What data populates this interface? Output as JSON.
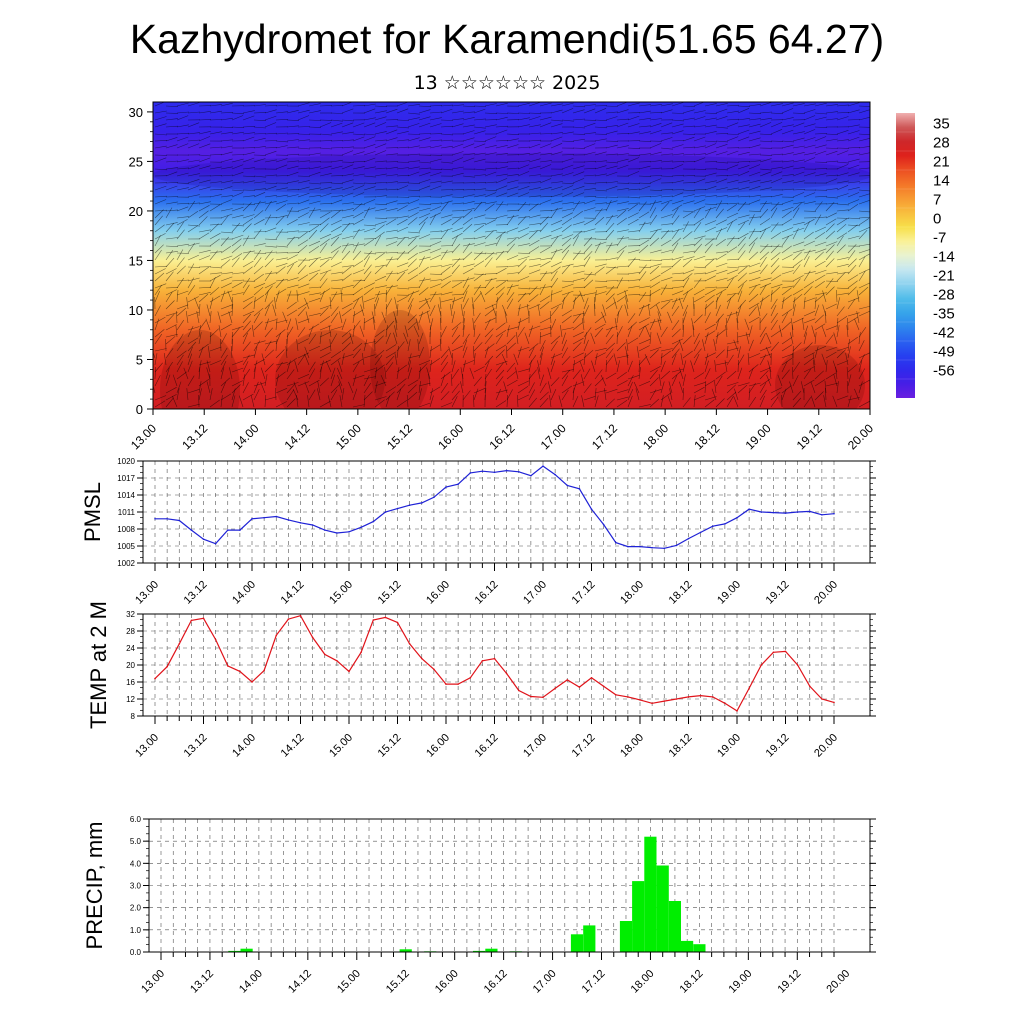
{
  "title": "Kazhydromet for Karamendi(51.65 64.27)",
  "subtitle": "13 ☆☆☆☆☆☆ 2025",
  "time_labels": [
    "13.00",
    "13.12",
    "14.00",
    "14.12",
    "15.00",
    "15.12",
    "16.00",
    "16.12",
    "17.00",
    "17.12",
    "18.00",
    "18.12",
    "19.00",
    "19.12",
    "20.00"
  ],
  "chart_data": [
    {
      "type": "heatmap",
      "name": "cross-section",
      "x": [
        "13.00",
        "13.12",
        "14.00",
        "14.12",
        "15.00",
        "15.12",
        "16.00",
        "16.12",
        "17.00",
        "17.12",
        "18.00",
        "18.12",
        "19.00",
        "19.12",
        "20.00"
      ],
      "ylim": [
        0,
        31
      ],
      "yticks": [
        0,
        5,
        10,
        15,
        20,
        25,
        30
      ],
      "colorbar": {
        "labels": [
          "35",
          "28",
          "21",
          "14",
          "7",
          "0",
          "-7",
          "-14",
          "-21",
          "-28",
          "-35",
          "-42",
          "-49",
          "-56"
        ],
        "range": [
          -63,
          42
        ]
      },
      "wind_barbs": true,
      "temperature_profile": [
        {
          "z": 0,
          "t": 30
        },
        {
          "z": 4,
          "t": 26
        },
        {
          "z": 8,
          "t": 18
        },
        {
          "z": 12,
          "t": 7
        },
        {
          "z": 15,
          "t": -5
        },
        {
          "z": 18,
          "t": -22
        },
        {
          "z": 21,
          "t": -40
        },
        {
          "z": 24,
          "t": -57
        },
        {
          "z": 26,
          "t": -60
        },
        {
          "z": 28,
          "t": -55
        },
        {
          "z": 31,
          "t": -52
        }
      ],
      "colors": {
        "warm": "#d9131a",
        "cold": "#3a1ee8",
        "neutral": "#f7f07a"
      }
    },
    {
      "type": "line",
      "ylabel": "PMSL",
      "ylim": [
        1002,
        1020
      ],
      "yticks": [
        1002,
        1005,
        1008,
        1011,
        1014,
        1017,
        1020
      ],
      "color": "#1f22d6",
      "x_step_hours": 3,
      "values": [
        1009.8,
        1009.8,
        1009.5,
        1007.8,
        1006.2,
        1005.4,
        1007.8,
        1007.8,
        1009.8,
        1010.0,
        1010.2,
        1009.6,
        1009.1,
        1008.7,
        1007.8,
        1007.3,
        1007.5,
        1008.3,
        1009.3,
        1011.0,
        1011.6,
        1012.2,
        1012.6,
        1013.6,
        1015.4,
        1015.9,
        1017.9,
        1018.2,
        1018.0,
        1018.3,
        1018.1,
        1017.4,
        1019.1,
        1017.6,
        1015.7,
        1015.1,
        1011.5,
        1008.8,
        1005.6,
        1004.9,
        1004.9,
        1004.7,
        1004.6,
        1005.1,
        1006.3,
        1007.4,
        1008.5,
        1008.9,
        1010.0,
        1011.5,
        1011.0,
        1010.9,
        1010.8,
        1011.0,
        1011.1,
        1010.5,
        1010.7
      ]
    },
    {
      "type": "line",
      "ylabel": "TEMP at 2 M",
      "ylim": [
        8,
        32
      ],
      "yticks": [
        8,
        12,
        16,
        20,
        24,
        28,
        32
      ],
      "color": "#e0131a",
      "x_step_hours": 3,
      "values": [
        16.8,
        19.6,
        25.0,
        30.5,
        31.0,
        26.0,
        19.8,
        18.5,
        16.0,
        18.7,
        27.0,
        30.8,
        31.6,
        26.5,
        22.5,
        21.0,
        18.5,
        23.0,
        30.6,
        31.2,
        30.0,
        25.0,
        21.5,
        19.0,
        15.5,
        15.5,
        17.0,
        21.0,
        21.5,
        18.0,
        14.0,
        12.6,
        12.4,
        14.5,
        16.5,
        14.8,
        17.0,
        15.0,
        13.0,
        12.5,
        11.8,
        11.0,
        11.5,
        12.0,
        12.5,
        12.8,
        12.5,
        11.0,
        9.2,
        14.5,
        20.0,
        23.0,
        23.2,
        20.0,
        15.0,
        12.0,
        11.2
      ]
    },
    {
      "type": "bar",
      "ylabel": "PRECIP, mm",
      "ylim": [
        0,
        6
      ],
      "yticks": [
        "0.0",
        "1.0",
        "2.0",
        "3.0",
        "4.0",
        "5.0",
        "6.0"
      ],
      "color": "#00ee00",
      "x_step_hours": 3,
      "values": [
        0,
        0,
        0,
        0,
        0,
        0,
        0.05,
        0.15,
        0,
        0.02,
        0,
        0,
        0,
        0,
        0,
        0,
        0,
        0,
        0,
        0,
        0.12,
        0,
        0.03,
        0,
        0,
        0,
        0.05,
        0.15,
        0,
        0.03,
        0,
        0,
        0,
        0,
        0.8,
        1.2,
        0,
        0,
        1.4,
        3.2,
        5.2,
        3.9,
        2.3,
        0.5,
        0.35,
        0,
        0,
        0,
        0,
        0,
        0,
        0,
        0,
        0,
        0,
        0
      ]
    }
  ]
}
